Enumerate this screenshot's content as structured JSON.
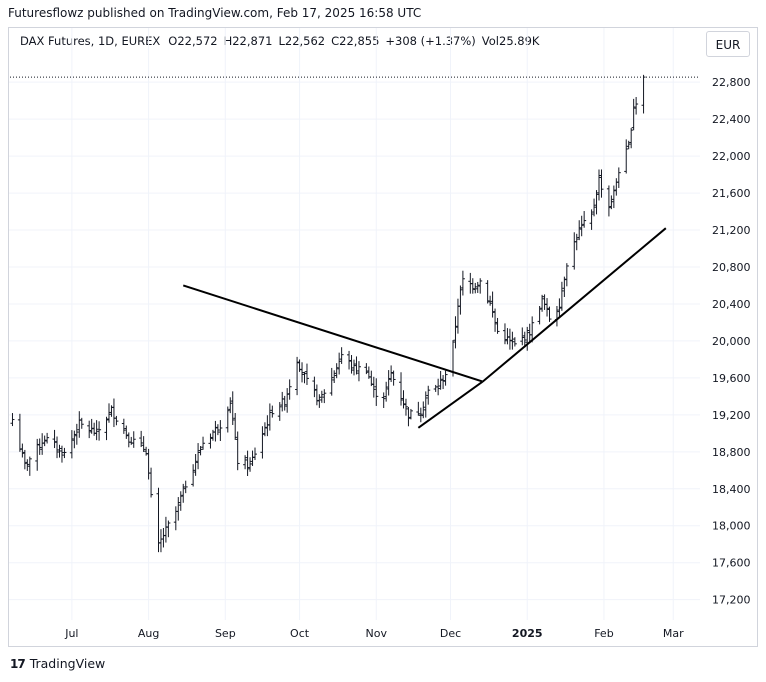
{
  "header": {
    "publisher_line": "Futuresflowz published on TradingView.com, Feb 17, 2025 16:58 UTC"
  },
  "legend": {
    "symbol": "DAX Futures, 1D, EUREX",
    "open": "O22,572",
    "high": "H22,871",
    "low": "L22,562",
    "close": "C22,855",
    "change": "+308 (+1.37%)",
    "volume": "Vol25.89K"
  },
  "currency": "EUR",
  "footer": {
    "brand": "TradingView",
    "logo_text": "17"
  },
  "colors": {
    "bars": "#131722",
    "trendline": "#000000",
    "grid": "#f0f3fa",
    "last_price_line": "#131722"
  },
  "chart_data": {
    "type": "ohlc",
    "y_ticks": [
      "17,200",
      "17,600",
      "18,000",
      "18,400",
      "18,800",
      "19,200",
      "19,600",
      "20,000",
      "20,400",
      "20,800",
      "21,200",
      "21,600",
      "22,000",
      "22,400",
      "22,800"
    ],
    "y_tick_values": [
      17200,
      17600,
      18000,
      18400,
      18800,
      19200,
      19600,
      20000,
      20400,
      20800,
      21200,
      21600,
      22000,
      22400,
      22800
    ],
    "x_labels": [
      "Jul",
      "Aug",
      "Sep",
      "Oct",
      "Nov",
      "Dec",
      "2025",
      "Feb",
      "Mar"
    ],
    "x_label_dates": [
      "2024-07-01",
      "2024-08-01",
      "2024-09-01",
      "2024-10-01",
      "2024-11-01",
      "2024-12-01",
      "2025-01-01",
      "2025-02-01",
      "2025-03-01"
    ],
    "x_range": [
      "2024-06-06",
      "2025-03-11"
    ],
    "ylim": [
      16980,
      23040
    ],
    "last_price": 22855,
    "trendlines": [
      {
        "name": "descending-resistance",
        "from": {
          "date": "2024-08-15",
          "price": 20600
        },
        "to": {
          "date": "2024-12-14",
          "price": 19560
        }
      },
      {
        "name": "rising-support-short",
        "from": {
          "date": "2024-11-18",
          "price": 19060
        },
        "to": {
          "date": "2024-12-14",
          "price": 19560
        }
      },
      {
        "name": "rising-support",
        "from": {
          "date": "2024-12-14",
          "price": 19560
        },
        "to": {
          "date": "2025-02-26",
          "price": 21220
        }
      }
    ],
    "anchors": [
      {
        "date": "2024-06-07",
        "price": 19150
      },
      {
        "date": "2024-06-12",
        "price": 18650
      },
      {
        "date": "2024-06-20",
        "price": 18950
      },
      {
        "date": "2024-06-28",
        "price": 18780
      },
      {
        "date": "2024-07-04",
        "price": 19100
      },
      {
        "date": "2024-07-11",
        "price": 19000
      },
      {
        "date": "2024-07-17",
        "price": 19250
      },
      {
        "date": "2024-07-24",
        "price": 18950
      },
      {
        "date": "2024-07-31",
        "price": 18820
      },
      {
        "date": "2024-08-02",
        "price": 18300
      },
      {
        "date": "2024-08-05",
        "price": 17780
      },
      {
        "date": "2024-08-07",
        "price": 17900
      },
      {
        "date": "2024-08-12",
        "price": 18150
      },
      {
        "date": "2024-08-16",
        "price": 18450
      },
      {
        "date": "2024-08-23",
        "price": 18900
      },
      {
        "date": "2024-08-30",
        "price": 19100
      },
      {
        "date": "2024-09-03",
        "price": 19350
      },
      {
        "date": "2024-09-06",
        "price": 18700
      },
      {
        "date": "2024-09-11",
        "price": 18650
      },
      {
        "date": "2024-09-16",
        "price": 19000
      },
      {
        "date": "2024-09-20",
        "price": 19250
      },
      {
        "date": "2024-09-25",
        "price": 19350
      },
      {
        "date": "2024-09-30",
        "price": 19800
      },
      {
        "date": "2024-10-04",
        "price": 19550
      },
      {
        "date": "2024-10-09",
        "price": 19350
      },
      {
        "date": "2024-10-14",
        "price": 19600
      },
      {
        "date": "2024-10-18",
        "price": 19850
      },
      {
        "date": "2024-10-23",
        "price": 19700
      },
      {
        "date": "2024-10-28",
        "price": 19700
      },
      {
        "date": "2024-10-31",
        "price": 19450
      },
      {
        "date": "2024-11-04",
        "price": 19400
      },
      {
        "date": "2024-11-07",
        "price": 19650
      },
      {
        "date": "2024-11-11",
        "price": 19400
      },
      {
        "date": "2024-11-14",
        "price": 19200
      },
      {
        "date": "2024-11-19",
        "price": 19250
      },
      {
        "date": "2024-11-22",
        "price": 19450
      },
      {
        "date": "2024-11-26",
        "price": 19500
      },
      {
        "date": "2024-11-29",
        "price": 19650
      },
      {
        "date": "2024-12-02",
        "price": 19950
      },
      {
        "date": "2024-12-04",
        "price": 20400
      },
      {
        "date": "2024-12-06",
        "price": 20650
      },
      {
        "date": "2024-12-10",
        "price": 20600
      },
      {
        "date": "2024-12-13",
        "price": 20650
      },
      {
        "date": "2024-12-17",
        "price": 20400
      },
      {
        "date": "2024-12-20",
        "price": 20100
      },
      {
        "date": "2024-12-27",
        "price": 19950
      },
      {
        "date": "2025-01-02",
        "price": 20100
      },
      {
        "date": "2025-01-07",
        "price": 20450
      },
      {
        "date": "2025-01-10",
        "price": 20250
      },
      {
        "date": "2025-01-14",
        "price": 20400
      },
      {
        "date": "2025-01-17",
        "price": 20850
      },
      {
        "date": "2025-01-22",
        "price": 21200
      },
      {
        "date": "2025-01-27",
        "price": 21350
      },
      {
        "date": "2025-01-30",
        "price": 21750
      },
      {
        "date": "2025-02-03",
        "price": 21450
      },
      {
        "date": "2025-02-05",
        "price": 21600
      },
      {
        "date": "2025-02-07",
        "price": 21850
      },
      {
        "date": "2025-02-11",
        "price": 22100
      },
      {
        "date": "2025-02-13",
        "price": 22550
      },
      {
        "date": "2025-02-14",
        "price": 22580
      },
      {
        "date": "2025-02-17",
        "price": 22855
      }
    ]
  }
}
